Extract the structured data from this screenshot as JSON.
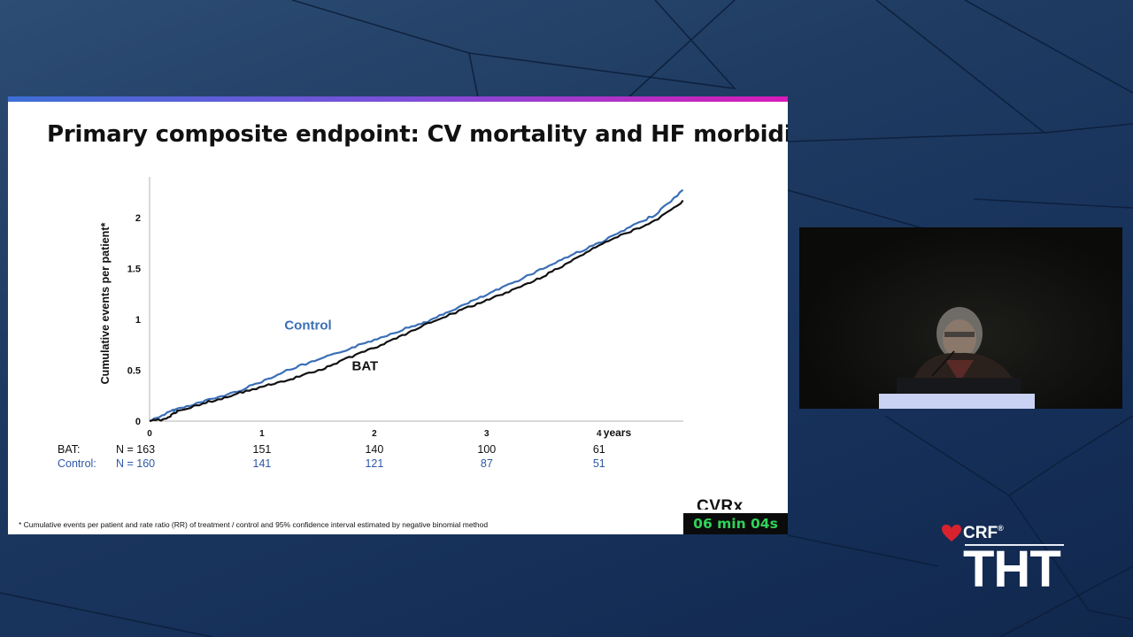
{
  "slide": {
    "title": "Primary composite endpoint: CV mortality and HF morbidity",
    "footnote": "* Cumulative events per patient and rate ratio (RR) of treatment / control and 95% confidence interval estimated by negative binomial method",
    "sponsor_logo": "CVRx"
  },
  "chart_data": {
    "type": "line",
    "title": "",
    "xlabel": "years",
    "ylabel": "Cumulative events per patient*",
    "xlim": [
      0,
      4.75
    ],
    "ylim": [
      0,
      2.4
    ],
    "x_ticks": [
      "0",
      "1",
      "2",
      "3",
      "4"
    ],
    "y_ticks": [
      "0",
      "0.5",
      "1",
      "1.5",
      "2"
    ],
    "grid": false,
    "legend": "inline labels",
    "series": [
      {
        "name": "Control",
        "color": "#3b6fb6",
        "x": [
          0,
          0.2,
          0.25,
          0.5,
          0.75,
          1,
          1.25,
          1.5,
          1.75,
          2,
          2.25,
          2.5,
          2.75,
          3,
          3.25,
          3.5,
          3.75,
          4,
          4.25,
          4.5,
          4.75
        ],
        "y": [
          0,
          0.1,
          0.12,
          0.2,
          0.28,
          0.39,
          0.51,
          0.6,
          0.7,
          0.8,
          0.9,
          0.99,
          1.12,
          1.24,
          1.37,
          1.5,
          1.63,
          1.75,
          1.89,
          2.03,
          2.27
        ]
      },
      {
        "name": "BAT",
        "color": "#111111",
        "x": [
          0,
          0.15,
          0.25,
          0.5,
          0.75,
          1,
          1.25,
          1.5,
          1.75,
          2,
          2.25,
          2.5,
          2.75,
          3,
          3.25,
          3.5,
          3.75,
          4,
          4.25,
          4.5,
          4.75
        ],
        "y": [
          0,
          0.02,
          0.1,
          0.18,
          0.26,
          0.34,
          0.41,
          0.5,
          0.61,
          0.72,
          0.84,
          0.97,
          1.08,
          1.19,
          1.3,
          1.42,
          1.57,
          1.73,
          1.85,
          1.97,
          2.16
        ]
      }
    ],
    "at_risk": {
      "rows": [
        {
          "label": "BAT:",
          "n": "N = 163",
          "values": [
            "151",
            "140",
            "100",
            "61"
          ]
        },
        {
          "label": "Control:",
          "n": "N = 160",
          "values": [
            "141",
            "121",
            "87",
            "51"
          ]
        }
      ]
    }
  },
  "timer": "06 min 04s",
  "brand": {
    "org": "CRF",
    "program": "THT",
    "reg_mark": "®"
  }
}
